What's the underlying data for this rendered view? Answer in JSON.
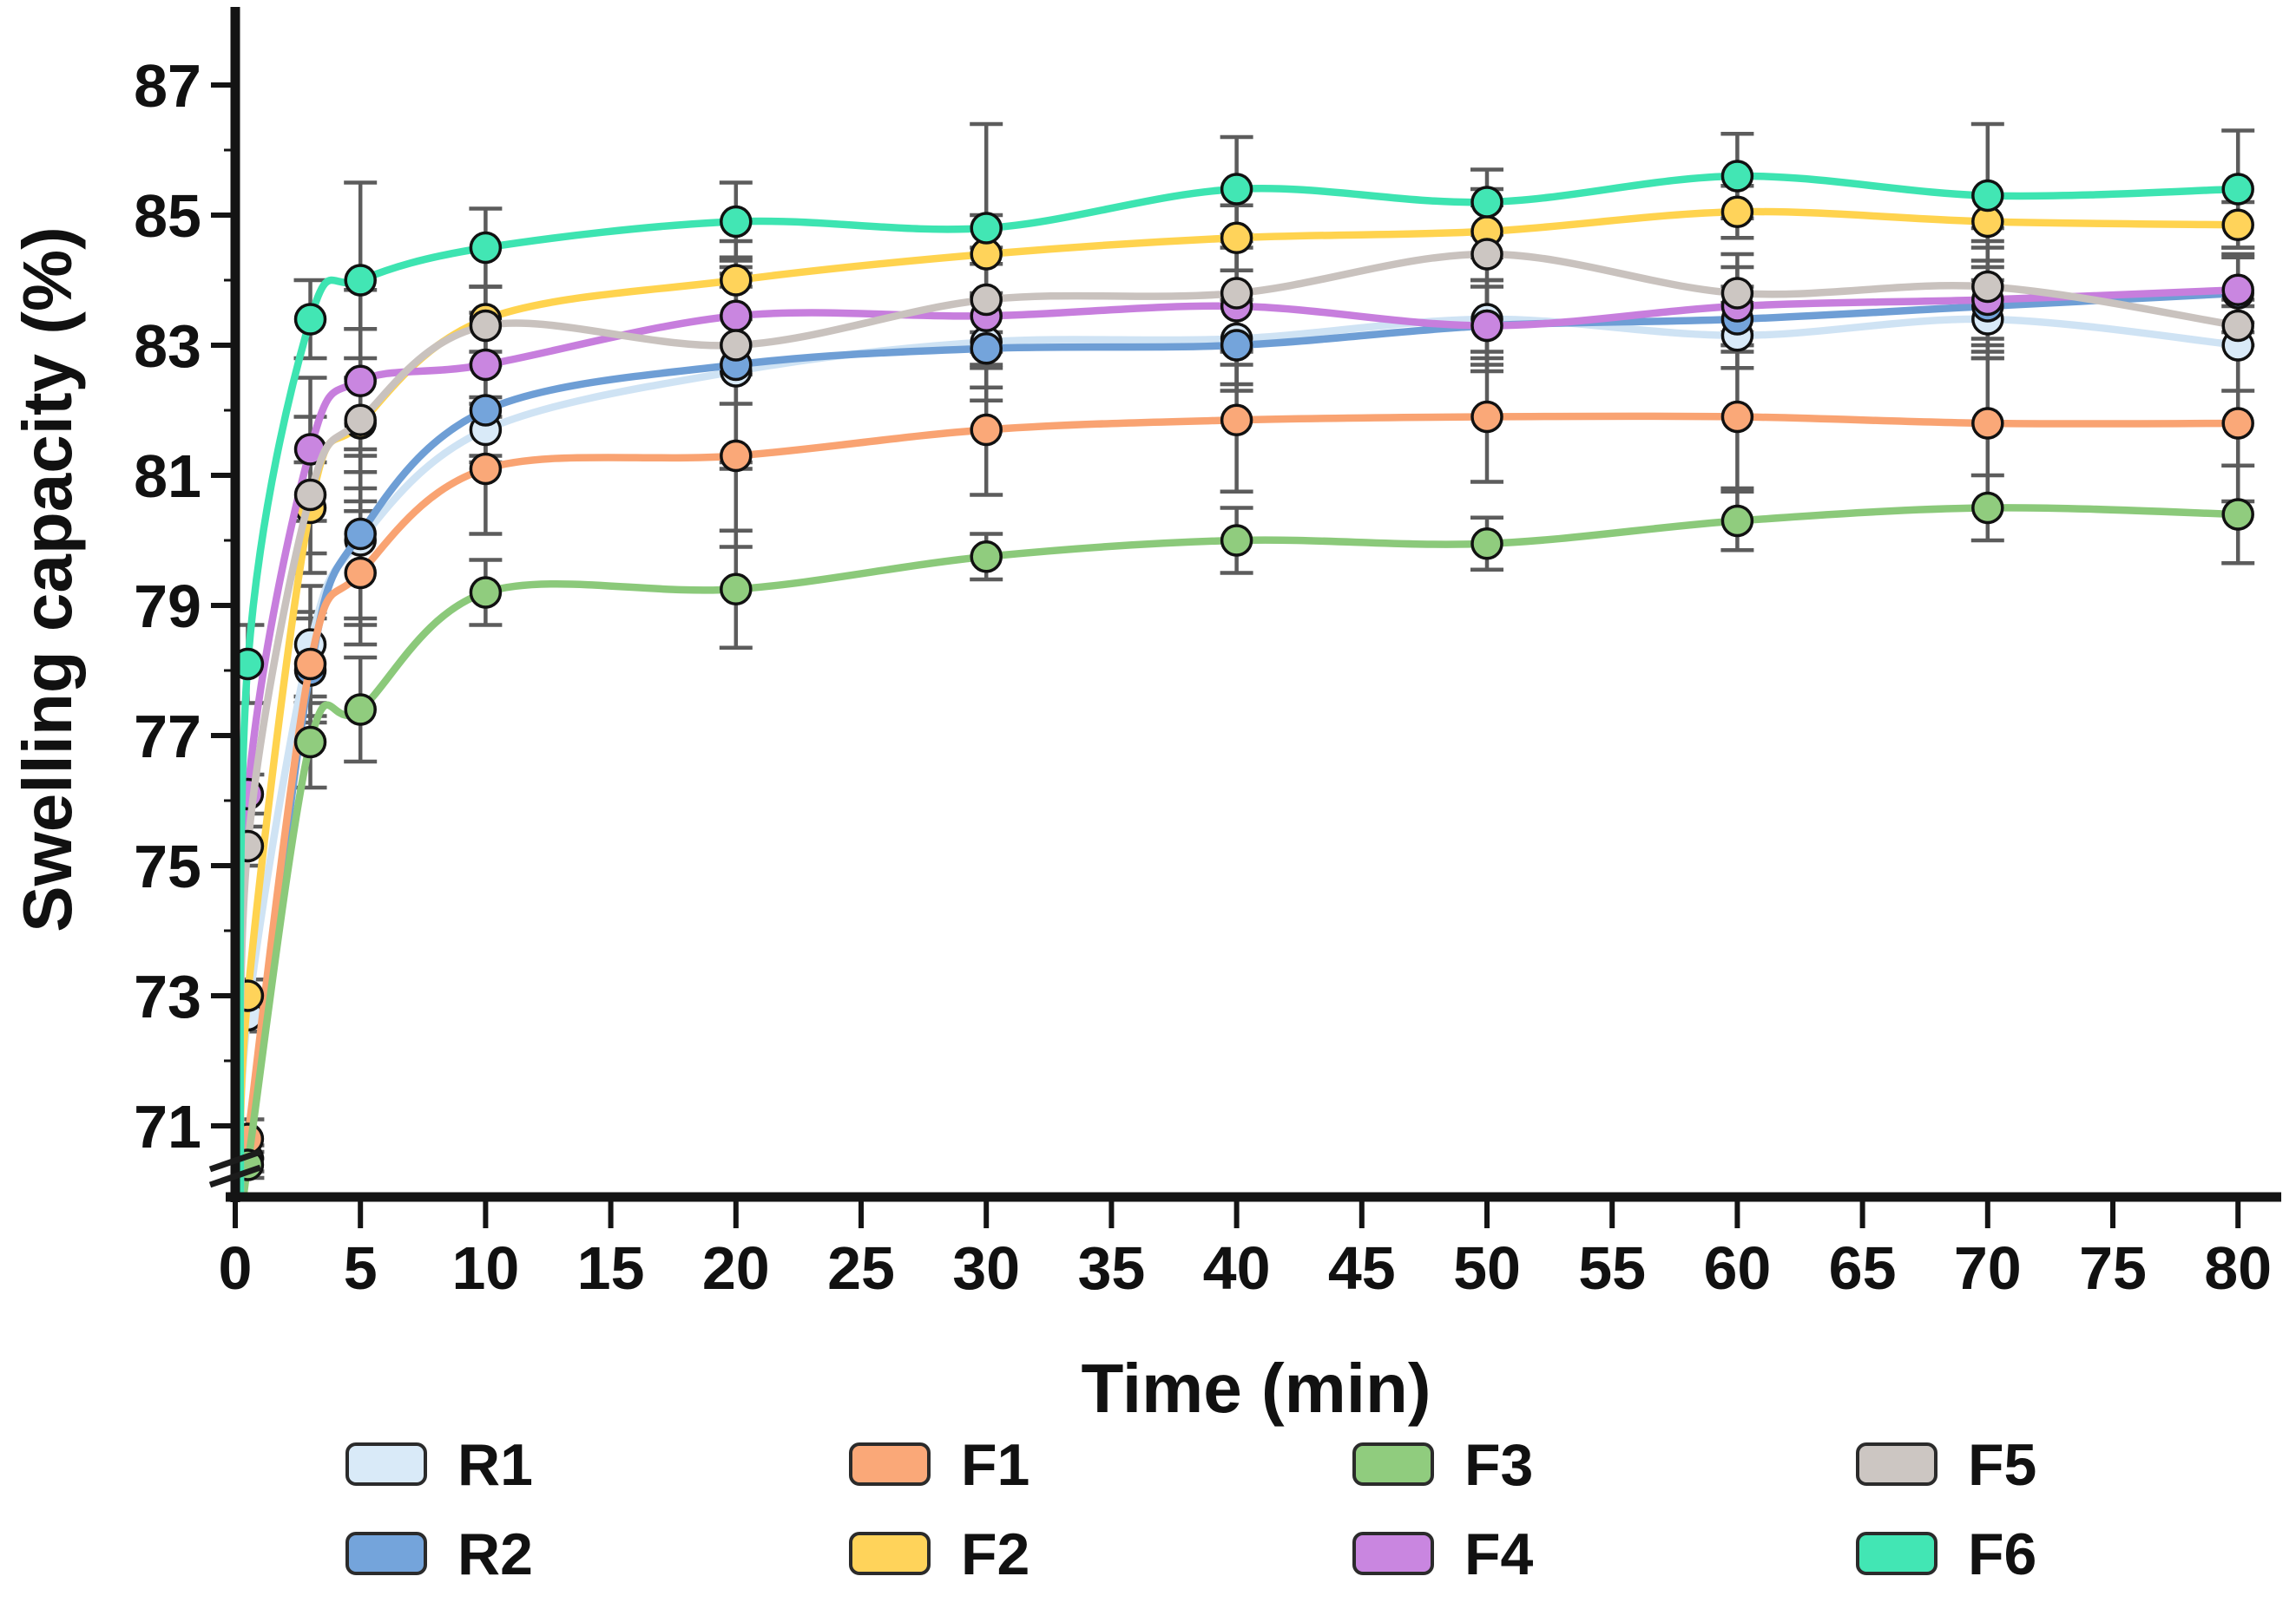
{
  "figure": {
    "y_axis": {
      "title": "Swelling capacity (%)",
      "tick_values": [
        87,
        85,
        83,
        81,
        79,
        77,
        75,
        73,
        71
      ],
      "minor_tick_values": [
        86,
        84,
        82,
        80,
        78,
        76,
        74,
        72
      ],
      "has_axis_break_below": true
    },
    "x_axis": {
      "title": "Time (min)",
      "tick_values": [
        0,
        5,
        10,
        15,
        20,
        25,
        30,
        35,
        40,
        45,
        50,
        55,
        60,
        65,
        70,
        75,
        80
      ]
    }
  },
  "chart_data": {
    "type": "line",
    "x_label": "Time (min)",
    "y_label": "Swelling capacity (%)",
    "x": [
      0.5,
      3,
      5,
      10,
      20,
      30,
      40,
      50,
      60,
      70,
      80
    ],
    "ylim": [
      70,
      87.5
    ],
    "grid": false,
    "legend_position": "bottom",
    "marker": "circle",
    "error_bars": true,
    "series": [
      {
        "name": "R1",
        "line_color": "#CFE3F4",
        "fill_color": "#D9EAF8",
        "values": [
          72.7,
          78.4,
          80.0,
          81.7,
          82.6,
          83.05,
          83.1,
          83.4,
          83.15,
          83.4,
          83.0
        ],
        "errors": [
          0.25,
          0.9,
          1.3,
          0.5,
          1.5,
          0.7,
          0.7,
          0.6,
          0.5,
          0.6,
          0.7
        ]
      },
      {
        "name": "R2",
        "line_color": "#6E9ED5",
        "fill_color": "#74A4DB",
        "values": [
          70.5,
          78.0,
          80.1,
          82.0,
          82.7,
          82.95,
          83.0,
          83.3,
          83.4,
          83.6,
          83.8
        ],
        "errors": [
          0.2,
          0.8,
          1.3,
          0.7,
          1.5,
          0.8,
          0.7,
          0.6,
          0.5,
          0.7,
          0.6
        ]
      },
      {
        "name": "F1",
        "line_color": "#F9A372",
        "fill_color": "#FAA878",
        "values": [
          70.8,
          78.1,
          79.5,
          81.1,
          81.3,
          81.7,
          81.85,
          81.9,
          81.9,
          81.8,
          81.8
        ],
        "errors": [
          0.3,
          0.8,
          1.1,
          1.0,
          1.4,
          1.0,
          1.1,
          1.0,
          1.1,
          1.3,
          1.2
        ]
      },
      {
        "name": "F2",
        "line_color": "#FFD34E",
        "fill_color": "#FFD35A",
        "values": [
          73.0,
          80.5,
          81.8,
          83.4,
          84.0,
          84.4,
          84.65,
          84.75,
          85.05,
          84.9,
          84.85
        ],
        "errors": [
          0.25,
          0.7,
          1.0,
          0.5,
          0.6,
          0.6,
          0.5,
          0.4,
          0.4,
          0.4,
          0.35
        ]
      },
      {
        "name": "F3",
        "line_color": "#8BC97A",
        "fill_color": "#90CC7E",
        "values": [
          70.4,
          76.9,
          77.4,
          79.2,
          79.25,
          79.75,
          80.0,
          79.95,
          80.3,
          80.5,
          80.4
        ],
        "errors": [
          0.2,
          0.7,
          0.8,
          0.5,
          0.9,
          0.35,
          0.5,
          0.4,
          0.45,
          0.5,
          0.75
        ]
      },
      {
        "name": "F4",
        "line_color": "#C77EDD",
        "fill_color": "#C986E0",
        "values": [
          76.1,
          81.4,
          82.45,
          82.7,
          83.45,
          83.45,
          83.6,
          83.3,
          83.6,
          83.7,
          83.85
        ],
        "errors": [
          0.3,
          1.1,
          1.4,
          0.8,
          0.9,
          0.8,
          0.9,
          0.7,
          0.6,
          0.9,
          0.5
        ]
      },
      {
        "name": "F5",
        "line_color": "#C9C2BE",
        "fill_color": "#CCC6C2",
        "values": [
          75.3,
          80.7,
          81.85,
          83.3,
          83.0,
          83.7,
          83.8,
          84.4,
          83.8,
          83.9,
          83.3
        ],
        "errors": [
          0.3,
          1.2,
          1.4,
          0.6,
          0.9,
          0.8,
          0.9,
          1.0,
          0.6,
          0.9,
          0.3
        ]
      },
      {
        "name": "F6",
        "line_color": "#3DE4B1",
        "fill_color": "#42E6B4",
        "values": [
          78.1,
          83.4,
          84.0,
          84.5,
          84.9,
          84.8,
          85.4,
          85.2,
          85.6,
          85.3,
          85.4
        ],
        "errors": [
          0.6,
          0.6,
          1.5,
          0.6,
          0.6,
          1.6,
          0.8,
          0.5,
          0.65,
          1.1,
          0.9
        ]
      }
    ]
  },
  "legend": {
    "items": [
      {
        "label": "R1"
      },
      {
        "label": "R2"
      },
      {
        "label": "F1"
      },
      {
        "label": "F2"
      },
      {
        "label": "F3"
      },
      {
        "label": "F4"
      },
      {
        "label": "F5"
      },
      {
        "label": "F6"
      }
    ]
  },
  "style": {
    "error_bar_color": "#5C5C5C",
    "axis_color": "#141414",
    "marker_outline": "#111111"
  }
}
